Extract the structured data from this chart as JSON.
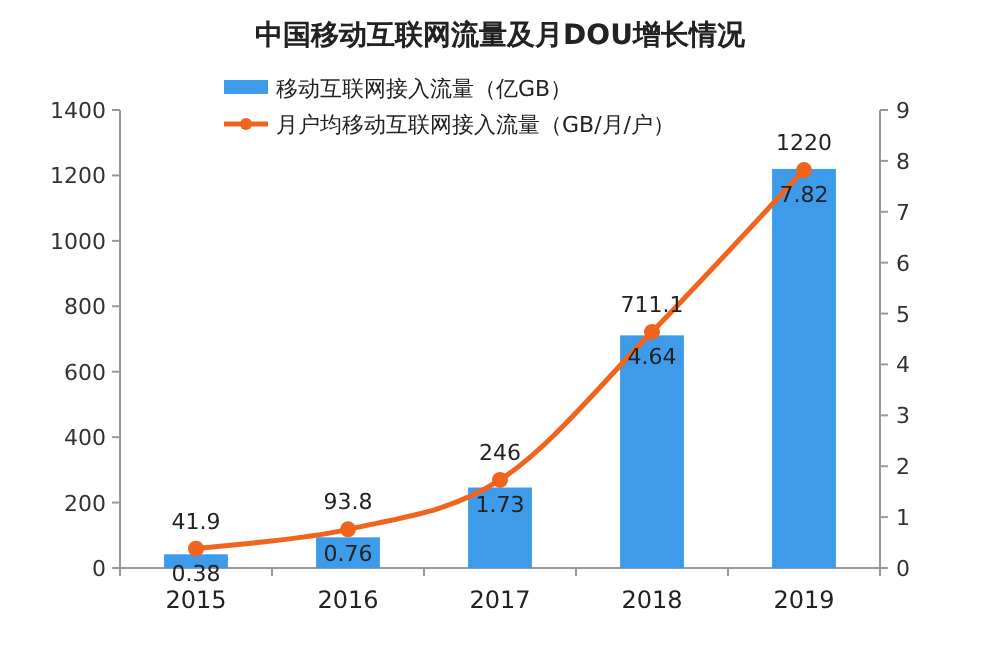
{
  "chart_data": {
    "type": "bar",
    "title": "中国移动互联网流量及月DOU增长情况",
    "categories": [
      "2015",
      "2016",
      "2017",
      "2018",
      "2019"
    ],
    "series": [
      {
        "name": "移动互联网接入流量（亿GB）",
        "color": "#3d9bea",
        "values": [
          41.9,
          93.8,
          246,
          711.1,
          1220
        ]
      },
      {
        "name": "月户均移动互联网接入流量（GB/月/户）",
        "type": "line",
        "axis": "y2",
        "color": "#f0641e",
        "marker": "circle",
        "values": [
          0.38,
          0.76,
          1.73,
          4.64,
          7.82
        ]
      }
    ],
    "ylim": [
      0,
      1400
    ],
    "yticks": [
      0,
      200,
      400,
      600,
      800,
      1000,
      1200,
      1400
    ],
    "y2lim": [
      0,
      9
    ],
    "y2ticks": [
      0,
      1,
      2,
      3,
      4,
      5,
      6,
      7,
      8,
      9
    ],
    "data_labels": true,
    "legend": "top left",
    "grid": false
  }
}
